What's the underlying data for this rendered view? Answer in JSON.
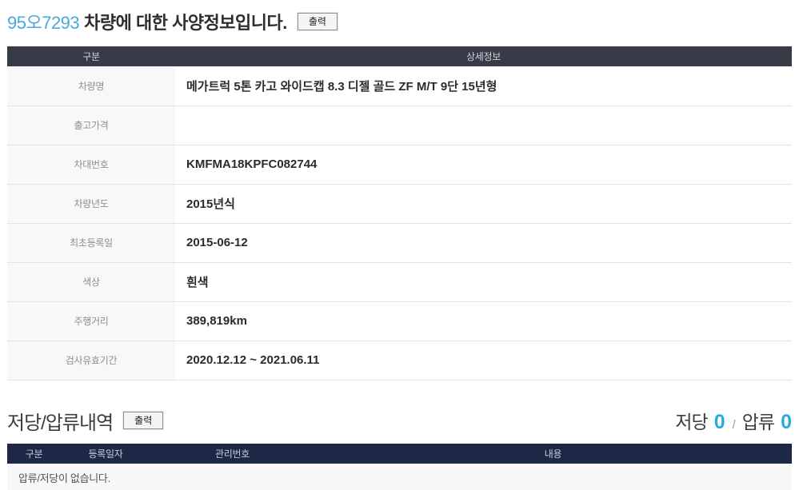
{
  "title": {
    "plate": "95오7293",
    "text": "차량에 대한 사양정보입니다.",
    "print_button": "출력"
  },
  "spec_table": {
    "col_headers": [
      "구분",
      "상세정보"
    ],
    "rows": [
      {
        "label": "차량명",
        "value": "메가트럭 5톤 카고 와이드캡 8.3 디젤 골드 ZF M/T 9단 15년형"
      },
      {
        "label": "출고가격",
        "value": ""
      },
      {
        "label": "차대번호",
        "value": "KMFMA18KPFC082744"
      },
      {
        "label": "차량년도",
        "value": "2015년식"
      },
      {
        "label": "최초등록일",
        "value": "2015-06-12"
      },
      {
        "label": "색상",
        "value": "흰색"
      },
      {
        "label": "주행거리",
        "value": "389,819km"
      },
      {
        "label": "검사유효기간",
        "value": "2020.12.12 ~ 2021.06.11"
      }
    ]
  },
  "lien": {
    "title": "저당/압류내역",
    "print_button": "출력",
    "summary": {
      "mortgage_label": "저당",
      "mortgage_count": "0",
      "separator": "/",
      "seizure_label": "압류",
      "seizure_count": "0"
    },
    "table": {
      "col_headers": [
        "구분",
        "등록일자",
        "관리번호",
        "내용"
      ],
      "empty_message": "압류/저당이 없습니다."
    }
  },
  "colors": {
    "plate_blue": "#4aa8d9",
    "count_blue": "#2aabe2",
    "spec_header_bg": "#363b47",
    "lien_header_bg": "#1c2846"
  }
}
